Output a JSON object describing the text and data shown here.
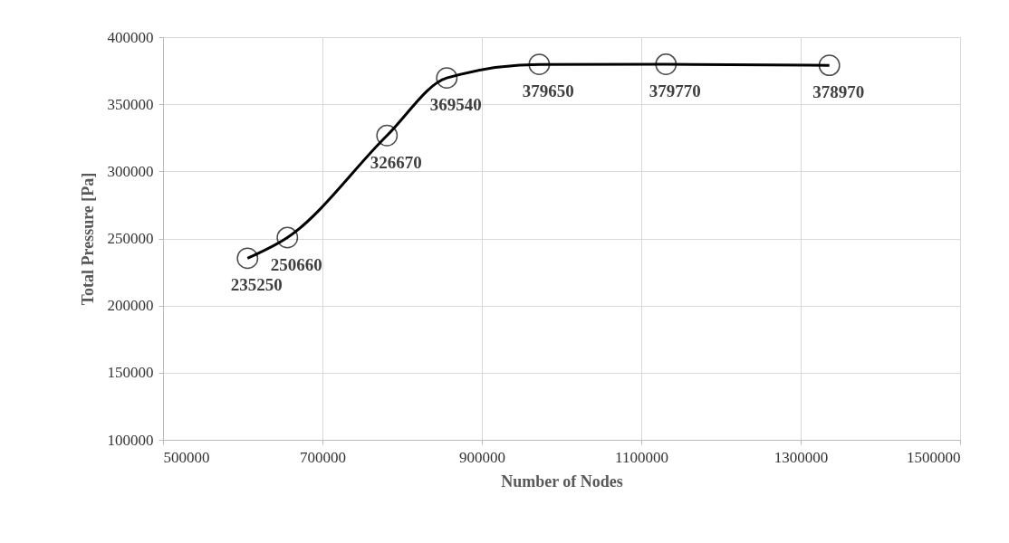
{
  "chart_data": {
    "type": "line",
    "xlabel": "Number of Nodes",
    "ylabel": "Total Pressure [Pa]",
    "x": [
      606000,
      656000,
      781000,
      856000,
      972000,
      1131000,
      1336000
    ],
    "series": [
      {
        "color": "#000000",
        "values": [
          235250,
          250660,
          326670,
          369540,
          379650,
          379770,
          378970
        ]
      }
    ],
    "xlim": [
      500000,
      1500000
    ],
    "xticks": [
      500000,
      700000,
      900000,
      1100000,
      1300000,
      1500000
    ],
    "ylim": [
      100000,
      400000
    ],
    "yticks": [
      100000,
      150000,
      200000,
      250000,
      300000,
      350000,
      400000
    ],
    "grid": true,
    "marker": "circle",
    "line_style": "solid",
    "data_labels": true
  }
}
